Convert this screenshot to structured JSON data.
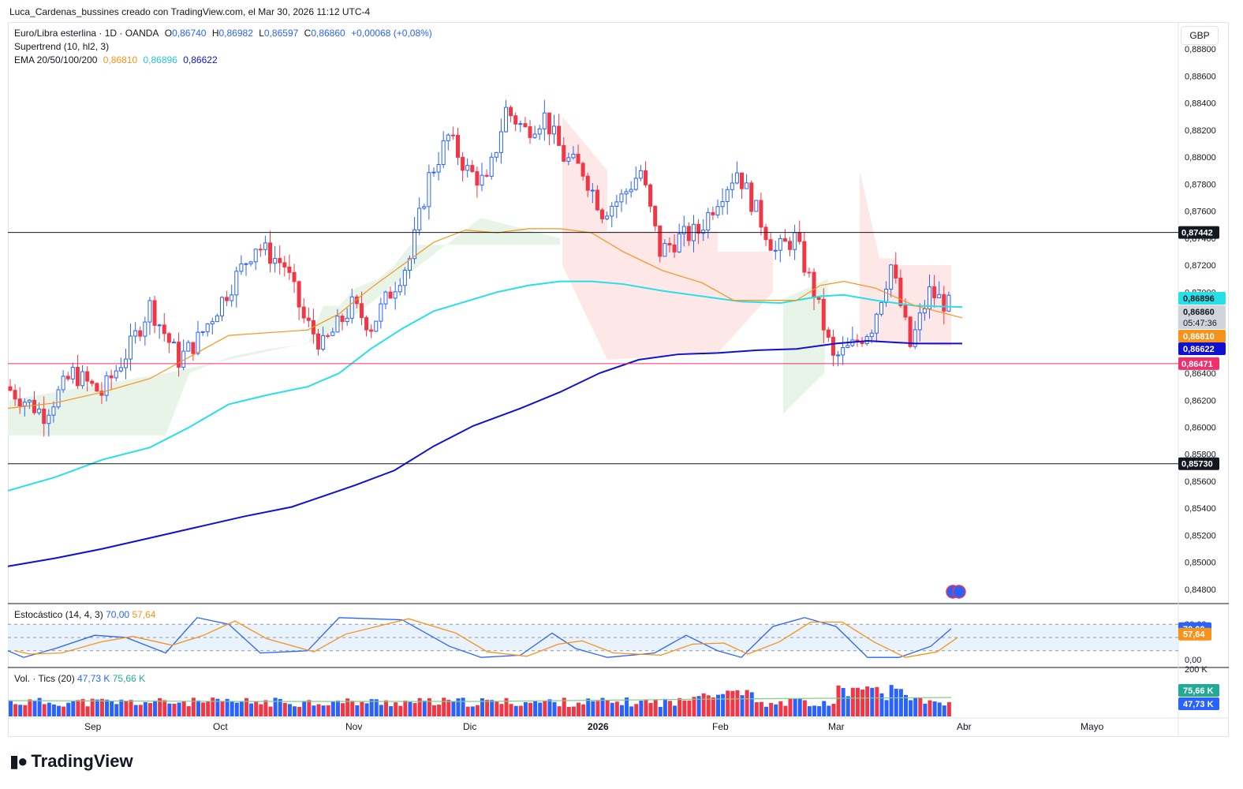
{
  "header": {
    "text": "Luca_Cardenas_bussines creado con TradingView.com, el Mar 30, 2026 11:12 UTC-4"
  },
  "legend": {
    "symbol": "Euro/Libra esterlina · 1D · OANDA",
    "o_label": "O",
    "o": "0,86740",
    "h_label": "H",
    "h": "0,86982",
    "l_label": "L",
    "l": "0,86597",
    "c_label": "C",
    "c": "0,86860",
    "change": "+0,00068 (+0,08%)",
    "supertrend": "Supertrend (10, hl2, 3)",
    "ema_label": "EMA 20/50/100/200",
    "ema20": "0,86810",
    "ema50": "0,86896",
    "ema100": "0,86622"
  },
  "currency_button": "GBP",
  "colors": {
    "up": "#2962ff",
    "down": "#f23645",
    "ema20": "#f7931a",
    "ema50": "#26e0e8",
    "ema200": "#1010d0",
    "hline_pink": "#f0306a",
    "st_green": "#e7f3e6",
    "st_red": "#fde4e4",
    "stoch_k": "#2962ff",
    "stoch_d": "#f7931a"
  },
  "stochastic_legend": {
    "label": "Estocástico (14, 4, 3)",
    "k": "70,00",
    "d": "57,64"
  },
  "volume_legend": {
    "label": "Vol. · Tics (20)",
    "v1": "47,73 K",
    "v2": "75,66 K"
  },
  "x_labels": [
    "Sep",
    "Oct",
    "Nov",
    "Dic",
    "2026",
    "Feb",
    "Mar",
    "Abr",
    "Mayo"
  ],
  "logo": {
    "text": "TradingView"
  },
  "chart_data": [
    {
      "type": "candlestick",
      "title": "Euro/Libra esterlina · 1D · OANDA",
      "currency": "GBP",
      "ylim": [
        0.847,
        0.89
      ],
      "y_ticks": [
        "0,88800",
        "0,88600",
        "0,88400",
        "0,88200",
        "0,88000",
        "0,87800",
        "0,87600",
        "0,87400",
        "0,87200",
        "0,87000",
        "0,86800",
        "0,86600",
        "0,86400",
        "0,86200",
        "0,86000",
        "0,85800",
        "0,85600",
        "0,85400",
        "0,85200",
        "0,85000",
        "0,84800"
      ],
      "horizontal_lines": [
        {
          "value": 0.87442,
          "label": "0,87442",
          "color": "#131722"
        },
        {
          "value": 0.8573,
          "label": "0,85730",
          "color": "#131722"
        },
        {
          "value": 0.86471,
          "label": "0,86471",
          "color": "#f0306a"
        }
      ],
      "price_labels": [
        {
          "value": 0.86896,
          "label": "0,86896",
          "bg": "#26e0e8",
          "fg": "#131722"
        },
        {
          "value": 0.8686,
          "label": "0,86860",
          "bg": "#d1d4dc",
          "fg": "#131722"
        },
        {
          "countdown": "05:47:36"
        },
        {
          "value": 0.8681,
          "label": "0,86810",
          "bg": "#f7931a",
          "fg": "#ffffff"
        },
        {
          "value": 0.86622,
          "label": "0,86622",
          "bg": "#1010d0",
          "fg": "#ffffff"
        }
      ],
      "ema200": [
        [
          0,
          0.8497
        ],
        [
          60,
          0.8503
        ],
        [
          120,
          0.851
        ],
        [
          180,
          0.8518
        ],
        [
          240,
          0.8526
        ],
        [
          300,
          0.8534
        ],
        [
          360,
          0.8541
        ],
        [
          400,
          0.8549
        ],
        [
          440,
          0.8557
        ],
        [
          490,
          0.8568
        ],
        [
          540,
          0.8586
        ],
        [
          590,
          0.8601
        ],
        [
          650,
          0.8614
        ],
        [
          700,
          0.8626
        ],
        [
          750,
          0.864
        ],
        [
          800,
          0.865
        ],
        [
          850,
          0.8654
        ],
        [
          900,
          0.8655
        ],
        [
          950,
          0.8657
        ],
        [
          1000,
          0.8658
        ],
        [
          1050,
          0.8662
        ],
        [
          1090,
          0.8664
        ],
        [
          1150,
          0.8662
        ],
        [
          1210,
          0.8662
        ]
      ],
      "ema100": [
        [
          0,
          0.8553
        ],
        [
          60,
          0.8563
        ],
        [
          120,
          0.8576
        ],
        [
          180,
          0.8585
        ],
        [
          230,
          0.86
        ],
        [
          280,
          0.8617
        ],
        [
          330,
          0.8624
        ],
        [
          380,
          0.863
        ],
        [
          420,
          0.864
        ],
        [
          460,
          0.8658
        ],
        [
          500,
          0.8673
        ],
        [
          540,
          0.8686
        ],
        [
          580,
          0.8693
        ],
        [
          620,
          0.87
        ],
        [
          660,
          0.8705
        ],
        [
          700,
          0.8708
        ],
        [
          740,
          0.8708
        ],
        [
          780,
          0.8706
        ],
        [
          830,
          0.8701
        ],
        [
          880,
          0.8697
        ],
        [
          930,
          0.8693
        ],
        [
          980,
          0.8692
        ],
        [
          1030,
          0.8697
        ],
        [
          1060,
          0.8698
        ],
        [
          1100,
          0.8694
        ],
        [
          1150,
          0.869
        ],
        [
          1210,
          0.8689
        ]
      ],
      "ema20": [
        [
          0,
          0.8614
        ],
        [
          60,
          0.8618
        ],
        [
          120,
          0.8626
        ],
        [
          180,
          0.8636
        ],
        [
          230,
          0.8652
        ],
        [
          280,
          0.8668
        ],
        [
          330,
          0.867
        ],
        [
          380,
          0.8672
        ],
        [
          420,
          0.8684
        ],
        [
          460,
          0.8703
        ],
        [
          500,
          0.872
        ],
        [
          540,
          0.8737
        ],
        [
          580,
          0.8746
        ],
        [
          620,
          0.8744
        ],
        [
          660,
          0.8747
        ],
        [
          700,
          0.8747
        ],
        [
          740,
          0.8744
        ],
        [
          780,
          0.873
        ],
        [
          830,
          0.8716
        ],
        [
          880,
          0.8707
        ],
        [
          920,
          0.8694
        ],
        [
          960,
          0.8694
        ],
        [
          1000,
          0.8694
        ],
        [
          1030,
          0.8705
        ],
        [
          1060,
          0.8708
        ],
        [
          1100,
          0.8703
        ],
        [
          1150,
          0.869
        ],
        [
          1210,
          0.8681
        ]
      ],
      "candles_ohlc": "generated from shape"
    },
    {
      "type": "line",
      "title": "Estocástico (14, 4, 3)",
      "ylim": [
        0,
        100
      ],
      "y_ticks": [
        "80,00",
        "0,00"
      ],
      "k_last": 70.0,
      "d_last": 57.64
    },
    {
      "type": "bar",
      "title": "Vol. · Tics (20)",
      "y_ticks": [
        "200 K"
      ],
      "ma_last": 75.66,
      "vol_last": 47.73,
      "labels": [
        {
          "label": "75,66 K",
          "bg": "#22ab94"
        },
        {
          "label": "47,73 K",
          "bg": "#2962ff"
        }
      ]
    }
  ]
}
